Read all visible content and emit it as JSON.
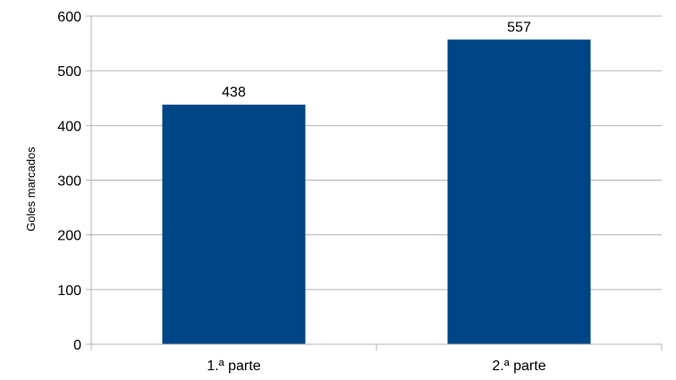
{
  "chart_data": {
    "type": "bar",
    "categories": [
      "1.ª parte",
      "2.ª parte"
    ],
    "values": [
      438,
      557
    ],
    "data_labels": [
      "438",
      "557"
    ],
    "title": "",
    "xlabel": "",
    "ylabel": "Goles marcados",
    "ylim": [
      0,
      600
    ],
    "yticks": [
      0,
      100,
      200,
      300,
      400,
      500,
      600
    ],
    "grid": true,
    "legend": "none",
    "bar_color": "#004586",
    "grid_color": "#b3b3b3"
  }
}
